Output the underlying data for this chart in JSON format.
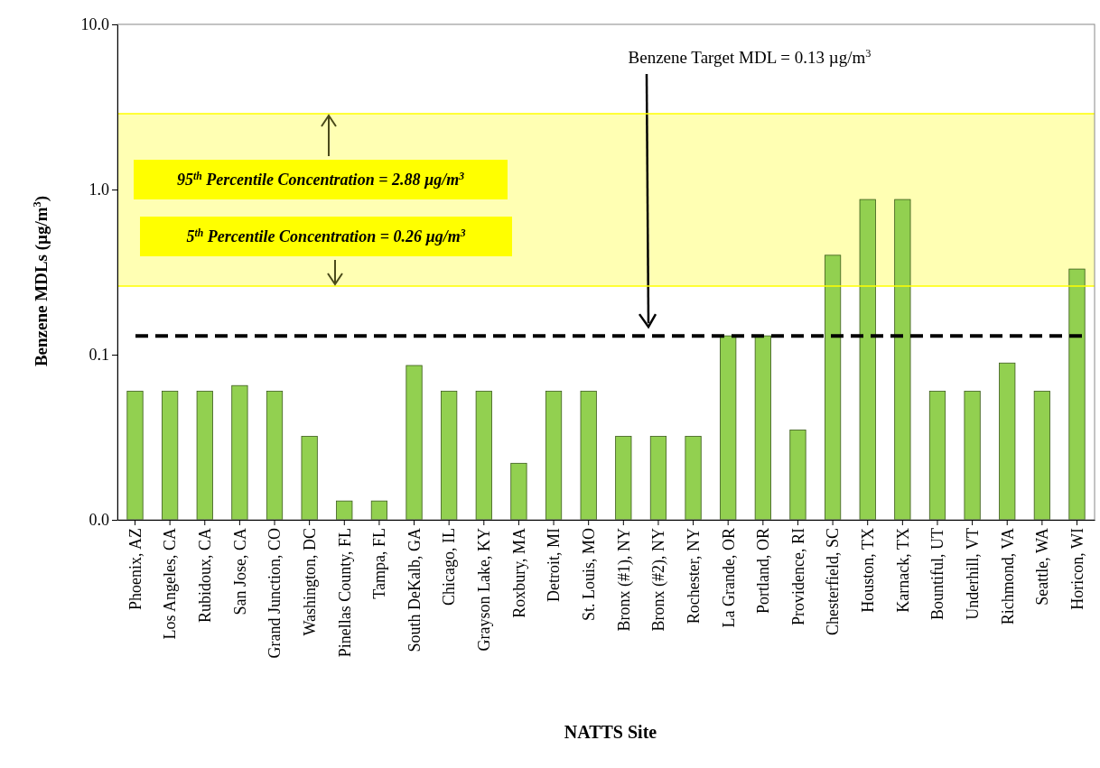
{
  "chart_data": {
    "type": "bar",
    "xlabel": "NATTS Site",
    "ylabel": "Benzene MDLs (µg/m$^{3}$)",
    "categories": [
      "Phoenix, AZ",
      "Los Angeles, CA",
      "Rubidoux, CA",
      "San Jose, CA",
      "Grand Junction, CO",
      "Washington, DC",
      "Pinellas County, FL",
      "Tampa, FL",
      "South DeKalb, GA",
      "Chicago, IL",
      "Grayson Lake, KY",
      "Roxbury, MA",
      "Detroit, MI",
      "St. Louis, MO",
      "Bronx (#1), NY",
      "Bronx (#2), NY",
      "Rochester, NY",
      "La Grande, OR",
      "Portland, OR",
      "Providence, RI",
      "Chesterfield, SC",
      "Houston, TX",
      "Karnack, TX",
      "Bountiful, UT",
      "Underhill, VT",
      "Richmond, VA",
      "Seattle, WA",
      "Horicon, WI"
    ],
    "values": [
      0.06,
      0.06,
      0.06,
      0.065,
      0.06,
      0.032,
      0.013,
      0.013,
      0.086,
      0.06,
      0.06,
      0.022,
      0.06,
      0.06,
      0.032,
      0.032,
      0.032,
      0.13,
      0.13,
      0.035,
      0.4,
      0.87,
      0.87,
      0.06,
      0.06,
      0.089,
      0.06,
      0.33
    ],
    "color": "#92d050",
    "log": true,
    "ylim": [
      0.01,
      10
    ],
    "yticks": [
      {
        "value": 0.01,
        "label": "0.0"
      },
      {
        "value": 0.1,
        "label": "0.1"
      },
      {
        "value": 1,
        "label": "1.0"
      },
      {
        "value": 10,
        "label": "10.0"
      }
    ],
    "ref_lines": [
      {
        "axis": "y",
        "value": 0.13,
        "label": "Benzene Target MDL = 0.13 µg/m$^{3}$",
        "color": "#000000",
        "line_style": "dashed"
      },
      {
        "axis": "y",
        "value": 2.88,
        "label": "95$^{th}$ Percentile Concentration = 2.88 µg/m$^{3}$",
        "color": "#ffff00",
        "line_style": "solid"
      },
      {
        "axis": "y",
        "value": 0.26,
        "label": "5$^{th}$ Percentile Concentration = 0.26 µg/m$^{3}$",
        "color": "#ffff00",
        "line_style": "solid"
      }
    ],
    "bands": [
      {
        "axis": "y",
        "from": 0.26,
        "to": 2.88,
        "color": "#ffff99"
      }
    ],
    "grid": false
  }
}
